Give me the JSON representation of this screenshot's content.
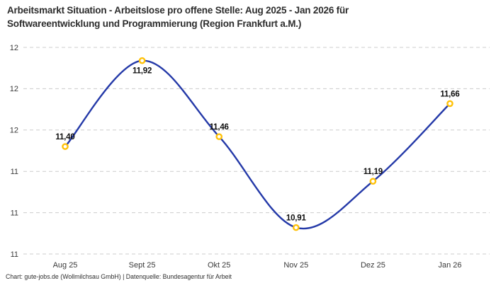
{
  "header": {
    "title_lines": [
      "Arbeitsmarkt Situation - Arbeitslose pro offene Stelle: Aug 2025 - Jan 2026 für",
      "Softwareentwicklung und Programmierung (Region Frankfurt a.M.)"
    ]
  },
  "chart_data": {
    "type": "line",
    "title": "Arbeitsmarkt Situation - Arbeitslose pro offene Stelle: Aug 2025 - Jan 2026 für Softwareentwicklung und Programmierung (Region Frankfurt a.M.)",
    "categories": [
      "Aug 25",
      "Sept 25",
      "Okt 25",
      "Nov 25",
      "Dez 25",
      "Jan 26"
    ],
    "values": [
      11.4,
      11.92,
      11.46,
      10.91,
      11.19,
      11.66
    ],
    "point_labels": [
      "11,40",
      "11,92",
      "11,46",
      "10,91",
      "11,19",
      "11,66"
    ],
    "series_name": "Arbeitslose pro offene Stelle",
    "ylim": [
      10.75,
      12.0
    ],
    "y_ticks": {
      "values": [
        12.0,
        11.75,
        11.5,
        11.25,
        11.0,
        10.75
      ],
      "labels": [
        "12",
        "12",
        "12",
        "11",
        "11",
        "11"
      ]
    },
    "grid": "horizontal-dashed",
    "legend": "none",
    "line_style": "smooth-spline",
    "colors": {
      "line": "#2439a8",
      "marker_stroke": "#ffc107",
      "marker_fill": "#ffffff",
      "grid": "#cccccc",
      "tick_text": "#3a3a3a",
      "point_label_text": "#0d0d0d"
    }
  },
  "footer": {
    "text": "Chart: gute-jobs.de (Wollmilchsau GmbH) | Datenquelle: Bundesagentur für Arbeit"
  }
}
